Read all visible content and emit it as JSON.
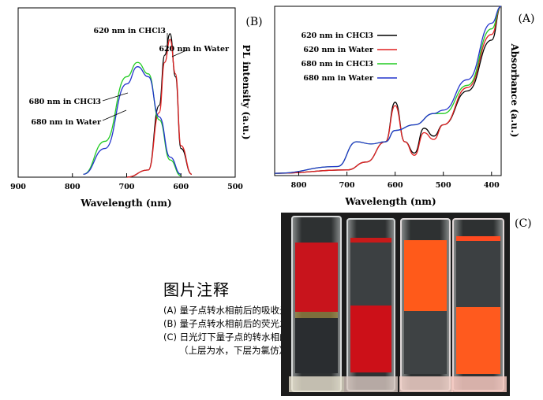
{
  "panel_b": {
    "label": "(B)",
    "ylabel": "PL intensity (a.u.)",
    "xlabel": "Wavelength (nm)",
    "xticks": [
      "900",
      "800",
      "700",
      "600",
      "500"
    ],
    "legend": [
      "620 nm in CHCl3",
      "620 nm in Water",
      "680 nm in CHCl3",
      "680 nm in Water"
    ]
  },
  "panel_a": {
    "label": "(A)",
    "ylabel": "Absorbance (a.u.)",
    "xlabel": "Wavelength (nm)",
    "xticks": [
      "800",
      "700",
      "600",
      "500",
      "400"
    ],
    "legend": [
      "620 nm in CHCl3",
      "620 nm in Water",
      "680 nm in CHCl3",
      "680 nm in Water"
    ]
  },
  "panel_c": {
    "label": "(C)"
  },
  "caption": {
    "title": "图片注释",
    "lines": [
      "(A) 量子点转水相前后的吸收光谱",
      "(B) 量子点转水相前后的荧光发射光谱",
      "(C) 日光灯下量子点的转水相的照片",
      "（上层为水，下层为氯仿）"
    ]
  },
  "colors": {
    "chcl3_620": "#000000",
    "water_620": "#e02020",
    "chcl3_680": "#22cc22",
    "water_680": "#2233cc"
  },
  "chart_data": [
    {
      "type": "line",
      "title": "",
      "xlabel": "Wavelength (nm)",
      "ylabel": "PL intensity (a.u.)",
      "xlim": [
        900,
        500
      ],
      "series": [
        {
          "name": "620 nm in CHCl3",
          "x": [
            700,
            660,
            640,
            630,
            620,
            610,
            600,
            580
          ],
          "y": [
            0,
            0.05,
            0.5,
            0.85,
            1.0,
            0.7,
            0.2,
            0.02
          ]
        },
        {
          "name": "620 nm in Water",
          "x": [
            700,
            660,
            640,
            630,
            620,
            610,
            600,
            580
          ],
          "y": [
            0,
            0.05,
            0.45,
            0.8,
            0.96,
            0.72,
            0.22,
            0.02
          ]
        },
        {
          "name": "680 nm in CHCl3",
          "x": [
            780,
            740,
            700,
            680,
            660,
            640,
            620,
            600
          ],
          "y": [
            0.02,
            0.25,
            0.7,
            0.8,
            0.72,
            0.4,
            0.12,
            0.01
          ]
        },
        {
          "name": "680 nm in Water",
          "x": [
            780,
            740,
            700,
            680,
            660,
            640,
            620,
            600
          ],
          "y": [
            0.02,
            0.2,
            0.65,
            0.77,
            0.7,
            0.42,
            0.14,
            0.02
          ]
        }
      ],
      "legend_position": "top-right"
    },
    {
      "type": "line",
      "title": "",
      "xlabel": "Wavelength (nm)",
      "ylabel": "Absorbance (a.u.)",
      "xlim": [
        850,
        380
      ],
      "series": [
        {
          "name": "620 nm in CHCl3",
          "x": [
            850,
            700,
            660,
            620,
            600,
            580,
            560,
            540,
            520,
            500,
            450,
            400,
            380
          ],
          "y": [
            0.02,
            0.05,
            0.12,
            0.3,
            0.65,
            0.3,
            0.2,
            0.42,
            0.35,
            0.45,
            0.75,
            1.2,
            1.5
          ]
        },
        {
          "name": "620 nm in Water",
          "x": [
            850,
            700,
            660,
            620,
            600,
            580,
            560,
            540,
            520,
            500,
            450,
            400,
            380
          ],
          "y": [
            0.02,
            0.05,
            0.12,
            0.3,
            0.62,
            0.3,
            0.18,
            0.38,
            0.32,
            0.45,
            0.78,
            1.25,
            1.5
          ]
        },
        {
          "name": "680 nm in CHCl3",
          "x": [
            850,
            720,
            680,
            650,
            620,
            600,
            560,
            520,
            500,
            450,
            400,
            380
          ],
          "y": [
            0.02,
            0.08,
            0.3,
            0.28,
            0.3,
            0.4,
            0.45,
            0.55,
            0.55,
            0.8,
            1.3,
            1.5
          ]
        },
        {
          "name": "680 nm in Water",
          "x": [
            850,
            720,
            680,
            650,
            620,
            600,
            560,
            520,
            500,
            450,
            400,
            380
          ],
          "y": [
            0.02,
            0.08,
            0.3,
            0.28,
            0.3,
            0.4,
            0.45,
            0.55,
            0.58,
            0.85,
            1.35,
            1.5
          ]
        }
      ],
      "legend_position": "top-right"
    }
  ]
}
